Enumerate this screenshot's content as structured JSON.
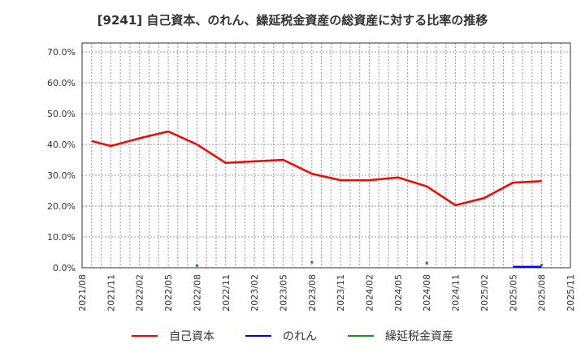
{
  "title": "[9241]  自己資本、のれん、繰延税金資産の総資産に対する比率の推移",
  "legend": [
    {
      "label": "自己資本",
      "color": "#ff0000"
    },
    {
      "label": "のれん",
      "color": "#0000ff"
    },
    {
      "label": "繰延税金資産",
      "color": "#228b22"
    }
  ],
  "chart_data": {
    "type": "line",
    "title": "[9241]  自己資本、のれん、繰延税金資産の総資産に対する比率の推移",
    "xlabel": "",
    "ylabel": "",
    "ylim": [
      0,
      70
    ],
    "y_ticks": [
      "0.0%",
      "10.0%",
      "20.0%",
      "30.0%",
      "40.0%",
      "50.0%",
      "60.0%",
      "70.0%"
    ],
    "x_ticks": [
      "2021/08",
      "2021/11",
      "2022/02",
      "2022/05",
      "2022/08",
      "2022/11",
      "2023/02",
      "2023/05",
      "2023/08",
      "2023/11",
      "2024/02",
      "2024/05",
      "2024/08",
      "2024/11",
      "2025/02",
      "2025/05",
      "2025/08",
      "2025/11"
    ],
    "grid": true,
    "legend_position": "bottom",
    "series": [
      {
        "name": "自己資本",
        "color": "#ff0000",
        "x": [
          "2021/09",
          "2021/11",
          "2022/02",
          "2022/05",
          "2022/08",
          "2022/11",
          "2023/02",
          "2023/05",
          "2023/08",
          "2023/11",
          "2024/02",
          "2024/05",
          "2024/08",
          "2024/11",
          "2025/02",
          "2025/05",
          "2025/08"
        ],
        "values": [
          41.1,
          39.5,
          42.0,
          44.2,
          40.0,
          34.0,
          34.5,
          35.0,
          30.5,
          28.4,
          28.4,
          29.3,
          26.4,
          20.3,
          22.6,
          27.6,
          28.1
        ]
      },
      {
        "name": "のれん",
        "color": "#0000ff",
        "x": [
          "2025/05",
          "2025/08"
        ],
        "values": [
          0.3,
          0.3
        ]
      },
      {
        "name": "繰延税金資産",
        "color": "#228b22",
        "x": [
          "2022/08",
          "2023/08",
          "2024/08",
          "2025/08"
        ],
        "values": [
          0.7,
          1.8,
          1.5,
          0.9
        ]
      }
    ]
  }
}
